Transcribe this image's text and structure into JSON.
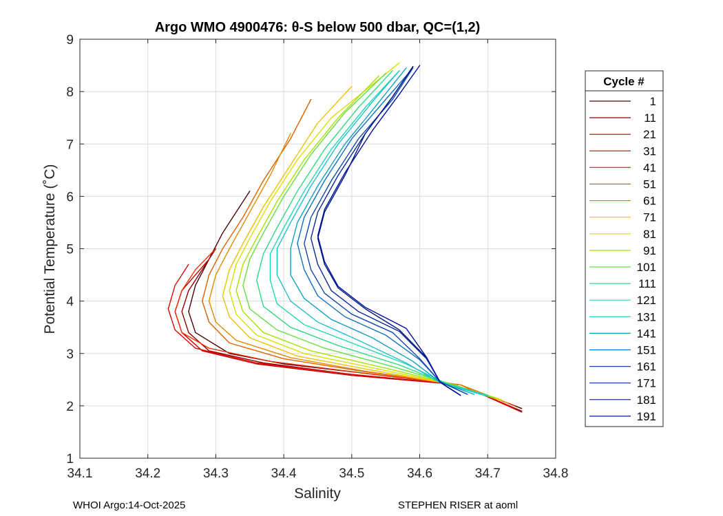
{
  "chart_data": {
    "type": "line",
    "title": "Argo WMO 4900476: θ-S below 500 dbar,  QC=(1,2)",
    "xlabel": "Salinity",
    "ylabel": "Potential Temperature (˚C)",
    "xlim": [
      34.1,
      34.8
    ],
    "ylim": [
      1,
      9
    ],
    "xticks": [
      34.1,
      34.2,
      34.3,
      34.4,
      34.5,
      34.6,
      34.7,
      34.8
    ],
    "xtick_labels": [
      "34.1",
      "34.2",
      "34.3",
      "34.4",
      "34.5",
      "34.6",
      "34.7",
      "34.8"
    ],
    "yticks": [
      1,
      2,
      3,
      4,
      5,
      6,
      7,
      8,
      9
    ],
    "ytick_labels": [
      "1",
      "2",
      "3",
      "4",
      "5",
      "6",
      "7",
      "8",
      "9"
    ],
    "grid": true,
    "legend": {
      "title": "Cycle #",
      "placement": "outside-right",
      "entries": [
        "1",
        "11",
        "21",
        "31",
        "41",
        "51",
        "61",
        "71",
        "81",
        "91",
        "101",
        "111",
        "121",
        "131",
        "141",
        "151",
        "161",
        "171",
        "181",
        "191"
      ],
      "colors": [
        "#500000",
        "#8b0000",
        "#c00000",
        "#e00000",
        "#f03000",
        "#e06000",
        "#e08a00",
        "#f0c000",
        "#d8e000",
        "#a8e000",
        "#60e040",
        "#30d880",
        "#20d8b0",
        "#20c0d0",
        "#10a0c0",
        "#1070c0",
        "#1048b0",
        "#0a2a98",
        "#001880",
        "#0010a0"
      ]
    },
    "series": [
      {
        "name": "1",
        "color": "#500000",
        "x": [
          34.75,
          34.66,
          34.52,
          34.4,
          34.32,
          34.27,
          34.26,
          34.27,
          34.29,
          34.31,
          34.33,
          34.35
        ],
        "y": [
          1.95,
          2.4,
          2.62,
          2.8,
          3.0,
          3.4,
          3.8,
          4.3,
          4.8,
          5.3,
          5.7,
          6.1
        ]
      },
      {
        "name": "11",
        "color": "#8b0000",
        "x": [
          34.75,
          34.66,
          34.5,
          34.37,
          34.29,
          34.26,
          34.25,
          34.26,
          34.28,
          34.3
        ],
        "y": [
          1.9,
          2.4,
          2.6,
          2.82,
          3.05,
          3.4,
          3.8,
          4.2,
          4.6,
          5.0
        ]
      },
      {
        "name": "21",
        "color": "#c00000",
        "x": [
          34.75,
          34.66,
          34.5,
          34.36,
          34.28,
          34.25,
          34.24,
          34.25,
          34.27,
          34.29
        ],
        "y": [
          1.88,
          2.4,
          2.58,
          2.8,
          3.05,
          3.4,
          3.8,
          4.2,
          4.5,
          4.8
        ]
      },
      {
        "name": "31",
        "color": "#e00000",
        "x": [
          34.74,
          34.66,
          34.5,
          34.36,
          34.27,
          34.24,
          34.23,
          34.24,
          34.26
        ],
        "y": [
          1.95,
          2.4,
          2.6,
          2.82,
          3.1,
          3.45,
          3.85,
          4.3,
          4.7
        ]
      },
      {
        "name": "41",
        "color": "#f03000",
        "x": [
          34.74,
          34.66,
          34.52,
          34.38,
          34.29,
          34.25,
          34.24,
          34.25,
          34.27,
          34.3
        ],
        "y": [
          2.0,
          2.4,
          2.62,
          2.85,
          3.1,
          3.4,
          3.8,
          4.2,
          4.6,
          5.0
        ]
      },
      {
        "name": "51",
        "color": "#e06000",
        "x": [
          34.73,
          34.66,
          34.52,
          34.4,
          34.32,
          34.29,
          34.28,
          34.29,
          34.31,
          34.34,
          34.37,
          34.41,
          34.44
        ],
        "y": [
          2.05,
          2.4,
          2.65,
          2.9,
          3.2,
          3.6,
          4.0,
          4.5,
          5.0,
          5.6,
          6.3,
          7.1,
          7.85
        ]
      },
      {
        "name": "61",
        "color": "#e08a00",
        "x": [
          34.73,
          34.66,
          34.52,
          34.41,
          34.33,
          34.3,
          34.29,
          34.3,
          34.32,
          34.35,
          34.38,
          34.41
        ],
        "y": [
          2.05,
          2.4,
          2.66,
          2.92,
          3.25,
          3.6,
          4.0,
          4.5,
          5.0,
          5.7,
          6.4,
          7.2
        ]
      },
      {
        "name": "71",
        "color": "#f0c000",
        "x": [
          34.72,
          34.65,
          34.53,
          34.42,
          34.35,
          34.32,
          34.31,
          34.32,
          34.34,
          34.37,
          34.41,
          34.45,
          34.5
        ],
        "y": [
          2.1,
          2.4,
          2.68,
          2.95,
          3.3,
          3.7,
          4.1,
          4.6,
          5.1,
          5.8,
          6.6,
          7.4,
          8.1
        ]
      },
      {
        "name": "81",
        "color": "#d8e000",
        "x": [
          34.72,
          34.65,
          34.54,
          34.43,
          34.36,
          34.33,
          34.32,
          34.33,
          34.35,
          34.38,
          34.42,
          34.47,
          34.57
        ],
        "y": [
          2.12,
          2.4,
          2.7,
          3.0,
          3.35,
          3.75,
          4.2,
          4.7,
          5.2,
          5.9,
          6.7,
          7.5,
          8.55
        ]
      },
      {
        "name": "91",
        "color": "#a8e000",
        "x": [
          34.71,
          34.65,
          34.55,
          34.44,
          34.37,
          34.34,
          34.33,
          34.34,
          34.36,
          34.39,
          34.43,
          34.48,
          34.54
        ],
        "y": [
          2.15,
          2.4,
          2.72,
          3.05,
          3.4,
          3.8,
          4.2,
          4.7,
          5.2,
          5.9,
          6.7,
          7.5,
          8.3
        ]
      },
      {
        "name": "101",
        "color": "#60e040",
        "x": [
          34.71,
          34.65,
          34.56,
          34.46,
          34.39,
          34.35,
          34.34,
          34.35,
          34.37,
          34.4,
          34.44,
          34.49,
          34.55
        ],
        "y": [
          2.15,
          2.4,
          2.75,
          3.1,
          3.45,
          3.85,
          4.3,
          4.8,
          5.3,
          6.0,
          6.8,
          7.6,
          8.35
        ]
      },
      {
        "name": "111",
        "color": "#30d880",
        "x": [
          34.7,
          34.64,
          34.57,
          34.48,
          34.41,
          34.37,
          34.36,
          34.37,
          34.39,
          34.42,
          34.46,
          34.51,
          34.56
        ],
        "y": [
          2.18,
          2.42,
          2.78,
          3.15,
          3.5,
          3.9,
          4.4,
          4.9,
          5.4,
          6.1,
          6.9,
          7.7,
          8.4
        ]
      },
      {
        "name": "121",
        "color": "#20d8b0",
        "x": [
          34.7,
          34.64,
          34.58,
          34.5,
          34.43,
          34.39,
          34.38,
          34.38,
          34.4,
          34.43,
          34.47,
          34.52,
          34.57
        ],
        "y": [
          2.2,
          2.42,
          2.8,
          3.2,
          3.55,
          3.95,
          4.4,
          4.9,
          5.4,
          6.1,
          6.9,
          7.7,
          8.4
        ]
      },
      {
        "name": "131",
        "color": "#20c0d0",
        "x": [
          34.69,
          34.63,
          34.58,
          34.51,
          34.45,
          34.41,
          34.39,
          34.39,
          34.41,
          34.44,
          34.48,
          34.53,
          34.57
        ],
        "y": [
          2.22,
          2.44,
          2.82,
          3.25,
          3.6,
          4.0,
          4.5,
          5.0,
          5.5,
          6.2,
          7.0,
          7.8,
          8.4
        ]
      },
      {
        "name": "141",
        "color": "#10a0c0",
        "x": [
          34.68,
          34.63,
          34.59,
          34.53,
          34.47,
          34.43,
          34.41,
          34.41,
          34.42,
          34.45,
          34.49,
          34.54,
          34.58
        ],
        "y": [
          2.22,
          2.45,
          2.85,
          3.3,
          3.65,
          4.05,
          4.5,
          5.0,
          5.5,
          6.2,
          7.0,
          7.8,
          8.45
        ]
      },
      {
        "name": "151",
        "color": "#1070c0",
        "x": [
          34.67,
          34.63,
          34.6,
          34.55,
          34.49,
          34.45,
          34.43,
          34.42,
          34.43,
          34.46,
          34.5,
          34.55,
          34.59
        ],
        "y": [
          2.22,
          2.46,
          2.88,
          3.35,
          3.7,
          4.1,
          4.6,
          5.1,
          5.6,
          6.3,
          7.1,
          7.85,
          8.45
        ]
      },
      {
        "name": "161",
        "color": "#1048b0",
        "x": [
          34.67,
          34.63,
          34.6,
          34.56,
          34.5,
          34.46,
          34.44,
          34.43,
          34.44,
          34.47,
          34.51,
          34.56,
          34.59
        ],
        "y": [
          2.22,
          2.46,
          2.9,
          3.4,
          3.75,
          4.15,
          4.6,
          5.1,
          5.6,
          6.3,
          7.1,
          7.85,
          8.45
        ]
      },
      {
        "name": "171",
        "color": "#0a2a98",
        "x": [
          34.66,
          34.63,
          34.61,
          34.57,
          34.51,
          34.47,
          34.45,
          34.44,
          34.45,
          34.48,
          34.52,
          34.56,
          34.59
        ],
        "y": [
          2.2,
          2.45,
          2.9,
          3.42,
          3.8,
          4.2,
          4.7,
          5.2,
          5.7,
          6.4,
          7.2,
          7.9,
          8.48
        ]
      },
      {
        "name": "181",
        "color": "#001880",
        "x": [
          34.66,
          34.63,
          34.61,
          34.57,
          34.52,
          34.48,
          34.46,
          34.45,
          34.46,
          34.49,
          34.52,
          34.56,
          34.59
        ],
        "y": [
          2.2,
          2.45,
          2.92,
          3.45,
          3.85,
          4.25,
          4.7,
          5.2,
          5.7,
          6.4,
          7.2,
          7.9,
          8.48
        ]
      },
      {
        "name": "191",
        "color": "#0010a0",
        "x": [
          34.66,
          34.63,
          34.61,
          34.58,
          34.52,
          34.48,
          34.46,
          34.45,
          34.46,
          34.49,
          34.53,
          34.57,
          34.6
        ],
        "y": [
          2.2,
          2.45,
          2.93,
          3.48,
          3.88,
          4.28,
          4.75,
          5.25,
          5.75,
          6.45,
          7.25,
          7.95,
          8.5
        ]
      }
    ]
  },
  "footer": {
    "left": "WHOI Argo:14-Oct-2025",
    "right": "STEPHEN RISER at aoml"
  }
}
